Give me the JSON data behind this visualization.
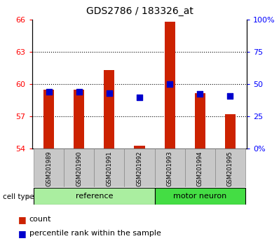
{
  "title": "GDS2786 / 183326_at",
  "samples": [
    "GSM201989",
    "GSM201990",
    "GSM201991",
    "GSM201992",
    "GSM201993",
    "GSM201994",
    "GSM201995"
  ],
  "groups": [
    "reference",
    "reference",
    "reference",
    "reference",
    "motor neuron",
    "motor neuron",
    "motor neuron"
  ],
  "red_values": [
    59.5,
    59.5,
    61.3,
    54.3,
    65.8,
    59.2,
    57.2
  ],
  "blue_values": [
    59.3,
    59.3,
    59.2,
    58.8,
    60.0,
    59.1,
    58.9
  ],
  "ylim_left": [
    54,
    66
  ],
  "ylim_right": [
    0,
    100
  ],
  "yticks_left": [
    54,
    57,
    60,
    63,
    66
  ],
  "yticks_right": [
    0,
    25,
    50,
    75,
    100
  ],
  "right_labels": [
    "0%",
    "25",
    "50",
    "75",
    "100%"
  ],
  "bar_width": 0.35,
  "blue_marker_size": 30,
  "bar_color": "#CC2200",
  "blue_color": "#0000CC",
  "bg_color": "#FFFFFF",
  "tick_bg": "#C8C8C8",
  "ref_color": "#AAEEA0",
  "mn_color": "#44DD44",
  "legend_count": "count",
  "legend_pct": "percentile rank within the sample",
  "title_fontsize": 10
}
